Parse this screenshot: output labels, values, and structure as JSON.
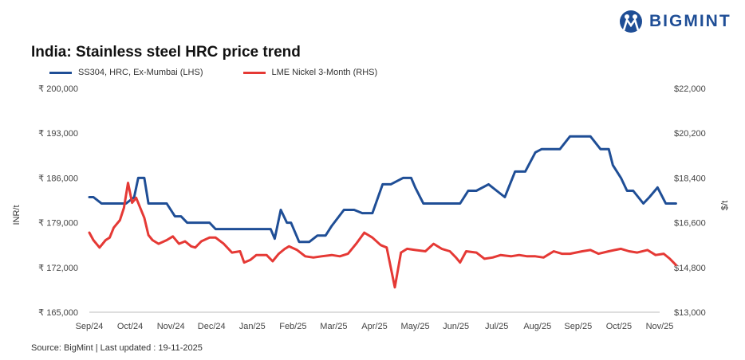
{
  "brand": {
    "name": "BIGMINT",
    "logo_icon": "bigmint-logo-icon",
    "color": "#1f4e96"
  },
  "source_text": "Source: BigMint | Last updated : 19-11-2025",
  "chart_data": {
    "type": "line",
    "title": "India: Stainless steel HRC price trend",
    "ylabel_left": "INR/t",
    "ylabel_right": "$/t",
    "x_ticks": [
      "Sep/24",
      "Oct/24",
      "Nov/24",
      "Dec/24",
      "Jan/25",
      "Feb/25",
      "Mar/25",
      "Apr/25",
      "May/25",
      "Jun/25",
      "Jul/25",
      "Aug/25",
      "Sep/25",
      "Oct/25",
      "Nov/25"
    ],
    "y_left": {
      "range": [
        165000,
        200000
      ],
      "ticks": [
        "₹ 200,000",
        "₹ 193,000",
        "₹ 186,000",
        "₹ 179,000",
        "₹ 172,000",
        "₹ 165,000"
      ],
      "values": [
        200000,
        193000,
        186000,
        179000,
        172000,
        165000
      ]
    },
    "y_right": {
      "range": [
        13000,
        22000
      ],
      "ticks": [
        "$22,000",
        "$20,200",
        "$18,400",
        "$16,600",
        "$14,800",
        "$13,000"
      ],
      "values": [
        22000,
        20200,
        18400,
        16600,
        14800,
        13000
      ]
    },
    "grid": false,
    "legend_position": "top-left",
    "series": [
      {
        "name": "SS304, HRC, Ex-Mumbai (LHS)",
        "axis": "left",
        "color": "#1f4e96",
        "x": [
          0,
          0.1,
          0.3,
          0.6,
          0.9,
          1.1,
          1.2,
          1.35,
          1.45,
          1.55,
          1.9,
          2.1,
          2.25,
          2.4,
          2.75,
          2.95,
          3.1,
          3.3,
          3.9,
          4.3,
          4.45,
          4.55,
          4.7,
          4.85,
          4.95,
          5.15,
          5.4,
          5.6,
          5.8,
          5.95,
          6.25,
          6.5,
          6.7,
          6.95,
          7.2,
          7.4,
          7.55,
          7.7,
          7.9,
          8.0,
          8.2,
          8.4,
          8.65,
          8.85,
          9.1,
          9.3,
          9.5,
          9.8,
          10.0,
          10.2,
          10.45,
          10.7,
          10.95,
          11.1,
          11.4,
          11.55,
          11.8,
          12.0,
          12.3,
          12.55,
          12.75,
          12.85,
          13.05,
          13.2,
          13.35,
          13.6,
          13.75,
          13.95,
          14.15,
          14.4
        ],
        "y": [
          183000,
          183000,
          182000,
          182000,
          182000,
          183000,
          186000,
          186000,
          182000,
          182000,
          182000,
          180000,
          180000,
          179000,
          179000,
          179000,
          178000,
          178000,
          178000,
          178000,
          178000,
          176500,
          181000,
          179000,
          179000,
          176000,
          176000,
          177000,
          177000,
          178500,
          181000,
          181000,
          180500,
          180500,
          185000,
          185000,
          185500,
          186000,
          186000,
          184500,
          182000,
          182000,
          182000,
          182000,
          182000,
          184000,
          184000,
          185000,
          184000,
          183000,
          187000,
          187000,
          190000,
          190500,
          190500,
          190500,
          192500,
          192500,
          192500,
          190500,
          190500,
          188000,
          186000,
          184000,
          184000,
          182000,
          183000,
          184500,
          182000,
          182000
        ],
        "y_note": "values in INR per tonne"
      },
      {
        "name": "LME Nickel 3-Month (RHS)",
        "axis": "right",
        "color": "#e53935",
        "x": [
          0,
          0.1,
          0.25,
          0.4,
          0.5,
          0.6,
          0.75,
          0.85,
          0.95,
          1.05,
          1.15,
          1.25,
          1.35,
          1.45,
          1.55,
          1.7,
          1.9,
          2.05,
          2.2,
          2.35,
          2.5,
          2.6,
          2.75,
          2.95,
          3.1,
          3.3,
          3.5,
          3.7,
          3.8,
          3.95,
          4.1,
          4.2,
          4.35,
          4.5,
          4.65,
          4.8,
          4.9,
          5.1,
          5.3,
          5.5,
          5.7,
          5.95,
          6.15,
          6.35,
          6.55,
          6.75,
          6.95,
          7.15,
          7.3,
          7.5,
          7.65,
          7.8,
          8.0,
          8.25,
          8.45,
          8.65,
          8.85,
          9.0,
          9.1,
          9.25,
          9.5,
          9.7,
          9.9,
          10.1,
          10.35,
          10.55,
          10.75,
          10.95,
          11.15,
          11.4,
          11.6,
          11.8,
          12.1,
          12.3,
          12.5,
          12.75,
          12.9,
          13.05,
          13.25,
          13.45,
          13.7,
          13.9,
          14.1,
          14.25,
          14.4
        ],
        "y": [
          16200,
          15900,
          15600,
          15900,
          16000,
          16400,
          16700,
          17200,
          18200,
          17400,
          17600,
          17200,
          16800,
          16100,
          15900,
          15750,
          15900,
          16050,
          15750,
          15850,
          15650,
          15600,
          15850,
          16000,
          16000,
          15750,
          15400,
          15450,
          15000,
          15100,
          15300,
          15300,
          15300,
          15050,
          15350,
          15550,
          15650,
          15500,
          15250,
          15200,
          15250,
          15300,
          15250,
          15350,
          15750,
          16200,
          16000,
          15700,
          15600,
          14000,
          15400,
          15550,
          15500,
          15450,
          15750,
          15550,
          15450,
          15200,
          15000,
          15450,
          15400,
          15150,
          15200,
          15300,
          15250,
          15300,
          15250,
          15250,
          15200,
          15450,
          15350,
          15350,
          15450,
          15500,
          15350,
          15450,
          15500,
          15550,
          15450,
          15400,
          15500,
          15300,
          15350,
          15150,
          14900
        ]
      }
    ]
  }
}
